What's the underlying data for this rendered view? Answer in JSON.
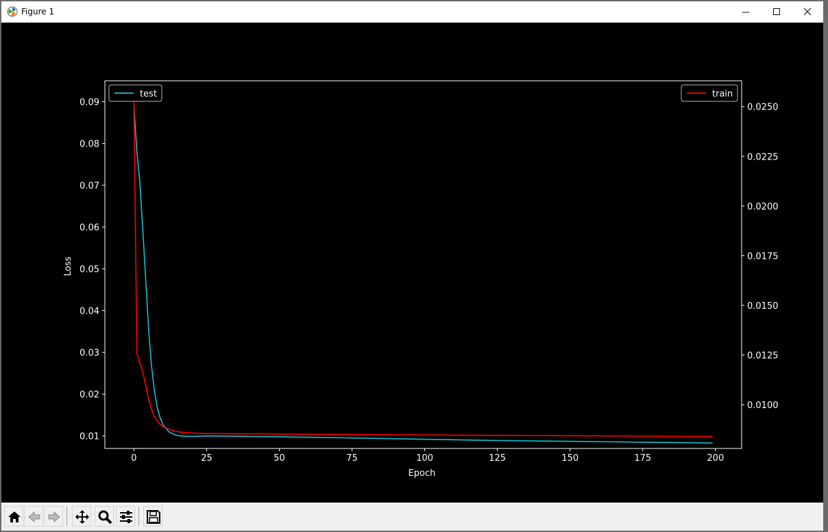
{
  "window": {
    "title": "Figure 1",
    "icon": "matplotlib-icon"
  },
  "titlebar_buttons": [
    {
      "name": "minimize-button",
      "icon": "minimize-icon"
    },
    {
      "name": "maximize-button",
      "icon": "maximize-icon"
    },
    {
      "name": "close-button",
      "icon": "close-icon"
    }
  ],
  "toolbar": {
    "buttons": [
      {
        "name": "home-button",
        "icon": "home-icon"
      },
      {
        "name": "back-button",
        "icon": "back-arrow-icon"
      },
      {
        "name": "forward-button",
        "icon": "forward-arrow-icon"
      },
      {
        "name": "pan-button",
        "icon": "pan-move-icon"
      },
      {
        "name": "zoom-button",
        "icon": "zoom-magnifier-icon"
      },
      {
        "name": "configure-subplots-button",
        "icon": "sliders-icon"
      },
      {
        "name": "save-button",
        "icon": "save-disk-icon"
      }
    ]
  },
  "chart_data": {
    "type": "line",
    "title": "",
    "xlabel": "Epoch",
    "ylabel": "Loss",
    "y2label": "",
    "xlim": [
      -10,
      209
    ],
    "ylim": [
      0.007,
      0.095
    ],
    "y2lim": [
      0.0078,
      0.0263
    ],
    "x_ticks": [
      0,
      25,
      50,
      75,
      100,
      125,
      150,
      175,
      200
    ],
    "x_tick_labels": [
      "0",
      "25",
      "50",
      "75",
      "100",
      "125",
      "150",
      "175",
      "200"
    ],
    "y_ticks": [
      0.01,
      0.02,
      0.03,
      0.04,
      0.05,
      0.06,
      0.07,
      0.08,
      0.09
    ],
    "y_tick_labels": [
      "0.01",
      "0.02",
      "0.03",
      "0.04",
      "0.05",
      "0.06",
      "0.07",
      "0.08",
      "0.09"
    ],
    "y2_ticks": [
      0.01,
      0.0125,
      0.015,
      0.0175,
      0.02,
      0.0225,
      0.025
    ],
    "y2_tick_labels": [
      "0.0100",
      "0.0125",
      "0.0150",
      "0.0175",
      "0.0200",
      "0.0225",
      "0.0250"
    ],
    "grid": false,
    "background": "#000000",
    "foreground": "#ffffff",
    "series": [
      {
        "name": "test",
        "axis": "left",
        "color": "#17becf",
        "x": [
          0,
          1,
          2,
          3,
          4,
          5,
          6,
          7,
          8,
          9,
          10,
          12,
          14,
          16,
          18,
          20,
          25,
          50,
          75,
          100,
          125,
          150,
          175,
          199
        ],
        "y": [
          0.089,
          0.078,
          0.071,
          0.06,
          0.048,
          0.036,
          0.027,
          0.021,
          0.0168,
          0.0143,
          0.0127,
          0.011,
          0.0103,
          0.01,
          0.0099,
          0.0099,
          0.01,
          0.0098,
          0.0095,
          0.0092,
          0.0089,
          0.0087,
          0.0085,
          0.0083
        ]
      },
      {
        "name": "train",
        "axis": "right",
        "color": "#ff0000",
        "x": [
          0,
          1,
          2,
          3,
          4,
          5,
          6,
          7,
          8,
          9,
          10,
          12,
          14,
          16,
          18,
          20,
          25,
          50,
          75,
          100,
          125,
          150,
          175,
          199
        ],
        "y": [
          0.0253,
          0.0126,
          0.0121,
          0.0117,
          0.011,
          0.0103,
          0.0098,
          0.0094,
          0.0092,
          0.009,
          0.0089,
          0.00877,
          0.00868,
          0.00862,
          0.0086,
          0.00858,
          0.00855,
          0.00852,
          0.0085,
          0.00848,
          0.00846,
          0.00844,
          0.00842,
          0.0084
        ]
      }
    ],
    "legends": [
      {
        "series": "test",
        "placement": "upper-left"
      },
      {
        "series": "train",
        "placement": "upper-right"
      }
    ]
  }
}
